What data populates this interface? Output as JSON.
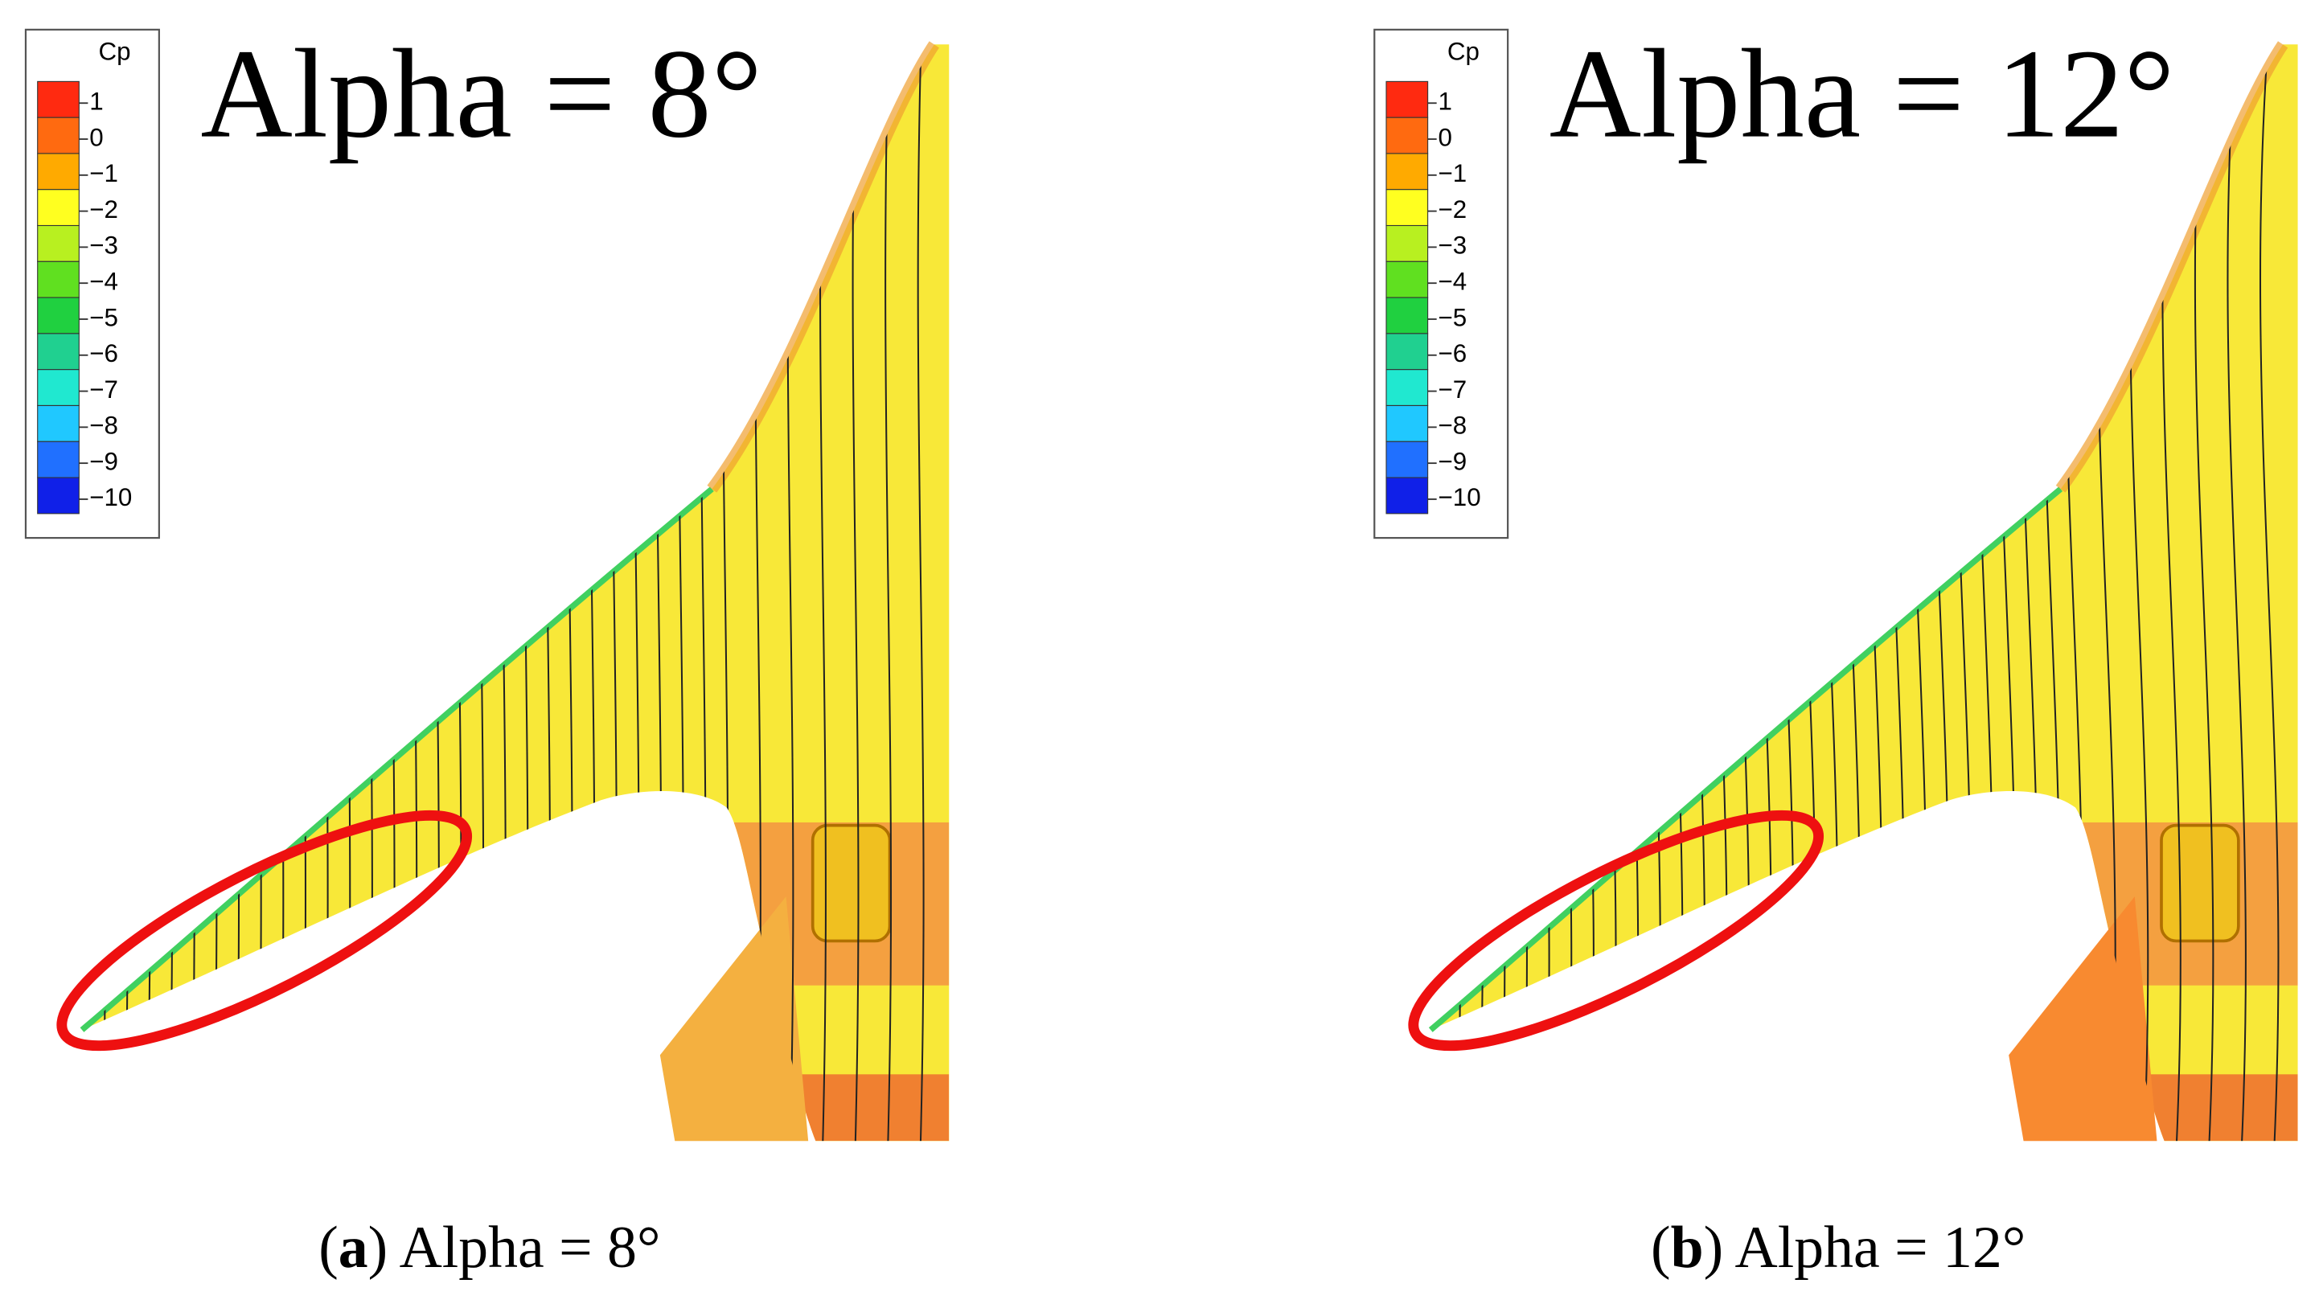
{
  "panels": [
    {
      "title": "Alpha = 8°",
      "legend": {
        "title": "Cp",
        "labels": [
          "1",
          "0",
          "−1",
          "−2",
          "−3",
          "−4",
          "−5",
          "−6",
          "−7",
          "−8",
          "−9",
          "−10"
        ],
        "colors": [
          "#ff2a10",
          "#ff6a10",
          "#ffaa00",
          "#ffff20",
          "#b8f020",
          "#60e020",
          "#20d040",
          "#20d090",
          "#20e8d0",
          "#20c8ff",
          "#2070ff",
          "#1020e8"
        ]
      },
      "caption": {
        "prefix": "(",
        "label": "a",
        "suffix": ") Alpha = 8°"
      }
    },
    {
      "title": "Alpha = 12°",
      "legend": {
        "title": "Cp",
        "labels": [
          "1",
          "0",
          "−1",
          "−2",
          "−3",
          "−4",
          "−5",
          "−6",
          "−7",
          "−8",
          "−9",
          "−10"
        ],
        "colors": [
          "#ff2a10",
          "#ff6a10",
          "#ffaa00",
          "#ffff20",
          "#b8f020",
          "#60e020",
          "#20d040",
          "#20d090",
          "#20e8d0",
          "#20c8ff",
          "#2070ff",
          "#1020e8"
        ]
      },
      "caption": {
        "prefix": "(",
        "label": "b",
        "suffix": ") Alpha = 12°"
      }
    }
  ]
}
